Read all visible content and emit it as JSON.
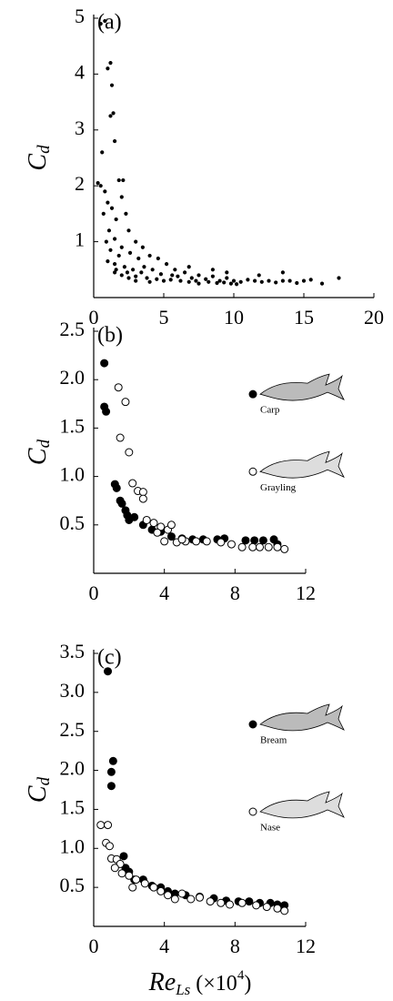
{
  "chart_data": [
    {
      "type": "scatter",
      "annotation": "(a)",
      "y_label": {
        "base": "C",
        "sub": "d"
      },
      "xlim": [
        0,
        20
      ],
      "ylim": [
        0,
        5
      ],
      "xticks": [
        0,
        5,
        10,
        15,
        20
      ],
      "yticks": [
        1,
        2,
        3,
        4,
        5
      ],
      "color": "#000000",
      "marker": "filled",
      "marker_size": 1.6,
      "x": [
        0.5,
        0.8,
        1.2,
        1.0,
        1.3,
        1.4,
        1.2,
        0.6,
        1.5,
        0.3,
        0.5,
        0.8,
        1.0,
        1.8,
        2.1,
        1.3,
        0.7,
        1.6,
        2.0,
        2.3,
        1.1,
        0.9,
        1.5,
        2.5,
        3.0,
        2.0,
        1.2,
        1.8,
        2.6,
        3.2,
        3.5,
        4.0,
        1.0,
        1.5,
        2.2,
        2.8,
        3.4,
        4.2,
        4.8,
        5.2,
        5.6,
        6.0,
        6.5,
        7.0,
        7.5,
        8.0,
        8.5,
        9.0,
        9.5,
        10.0,
        10.5,
        11.0,
        11.5,
        12.0,
        12.5,
        13.0,
        13.5,
        14.0,
        14.5,
        15.0,
        15.5,
        16.3,
        17.5,
        2.0,
        2.5,
        3.0,
        3.8,
        4.5,
        5.0,
        5.5,
        6.2,
        6.8,
        7.3,
        8.2,
        8.8,
        9.3,
        9.8,
        10.2,
        1.6,
        2.4,
        3.6,
        4.6,
        5.8,
        6.8,
        8.5,
        9.5,
        7.5,
        11.8,
        13.5,
        1.5,
        3.0,
        4.0
      ],
      "values": [
        4.9,
        4.95,
        4.2,
        4.1,
        3.8,
        3.3,
        3.25,
        2.6,
        2.8,
        2.05,
        2.0,
        1.9,
        1.7,
        2.1,
        2.1,
        1.6,
        1.5,
        1.4,
        1.8,
        1.5,
        1.2,
        1.0,
        1.05,
        1.2,
        1.0,
        0.9,
        0.85,
        0.75,
        0.8,
        0.7,
        0.9,
        0.75,
        0.65,
        0.6,
        0.55,
        0.5,
        0.45,
        0.5,
        0.42,
        0.6,
        0.4,
        0.38,
        0.45,
        0.35,
        0.4,
        0.33,
        0.38,
        0.3,
        0.35,
        0.3,
        0.28,
        0.32,
        0.3,
        0.28,
        0.3,
        0.27,
        0.3,
        0.3,
        0.26,
        0.3,
        0.32,
        0.25,
        0.35,
        0.4,
        0.35,
        0.38,
        0.35,
        0.33,
        0.3,
        0.32,
        0.3,
        0.28,
        0.3,
        0.28,
        0.26,
        0.27,
        0.25,
        0.24,
        0.5,
        0.45,
        0.55,
        0.7,
        0.5,
        0.55,
        0.5,
        0.45,
        0.25,
        0.4,
        0.45,
        0.45,
        0.3,
        0.28
      ]
    },
    {
      "type": "scatter",
      "annotation": "(b)",
      "y_label": {
        "base": "C",
        "sub": "d"
      },
      "xlim": [
        0,
        12
      ],
      "ylim": [
        0,
        2.5
      ],
      "xticks": [
        0,
        4,
        8,
        12
      ],
      "yticks": [
        0.5,
        {
          "value": 1,
          "label": "1.0"
        },
        1.5,
        {
          "value": 2,
          "label": "2.0"
        },
        2.5
      ],
      "legend": "right",
      "marker_size": 4,
      "series": [
        {
          "name": "Carp",
          "color": "#000000",
          "marker": "filled",
          "x": [
            0.6,
            0.6,
            0.7,
            1.2,
            1.3,
            1.5,
            1.6,
            1.8,
            1.9,
            2.0,
            2.3,
            2.8,
            3.3,
            3.8,
            4.4,
            5.0,
            5.6,
            6.2,
            7.0,
            7.4,
            8.6,
            9.1,
            9.6,
            10.2,
            10.4
          ],
          "values": [
            2.17,
            1.72,
            1.67,
            0.92,
            0.88,
            0.75,
            0.72,
            0.65,
            0.6,
            0.55,
            0.58,
            0.5,
            0.45,
            0.43,
            0.38,
            0.36,
            0.35,
            0.35,
            0.35,
            0.36,
            0.34,
            0.34,
            0.34,
            0.35,
            0.3
          ]
        },
        {
          "name": "Grayling",
          "color": "#000000",
          "marker": "open",
          "x": [
            1.4,
            1.8,
            1.5,
            2.0,
            2.2,
            2.5,
            2.8,
            2.8,
            3.0,
            3.4,
            3.8,
            4.2,
            4.4,
            4.0,
            4.7,
            5.2,
            5.8,
            6.4,
            7.2,
            7.8,
            8.4,
            9.0,
            9.4,
            9.9,
            10.4,
            10.8,
            3.6,
            5.0
          ],
          "values": [
            1.92,
            1.77,
            1.4,
            1.25,
            0.93,
            0.85,
            0.84,
            0.77,
            0.55,
            0.52,
            0.48,
            0.45,
            0.5,
            0.33,
            0.32,
            0.33,
            0.33,
            0.33,
            0.32,
            0.3,
            0.27,
            0.27,
            0.27,
            0.27,
            0.27,
            0.25,
            0.42,
            0.35
          ]
        }
      ]
    },
    {
      "type": "scatter",
      "annotation": "(c)",
      "y_label": {
        "base": "C",
        "sub": "d"
      },
      "x_label": {
        "base": "Re",
        "sub": "Ls",
        "unit": "(×10",
        "exp": "4",
        "close": ")"
      },
      "xlim": [
        0,
        12
      ],
      "ylim": [
        0,
        3.5
      ],
      "xticks": [
        0,
        4,
        8,
        12
      ],
      "yticks": [
        0.5,
        {
          "value": 1,
          "label": "1.0"
        },
        1.5,
        {
          "value": 2,
          "label": "2.0"
        },
        2.5,
        {
          "value": 3,
          "label": "3.0"
        },
        3.5
      ],
      "legend": "right",
      "marker_size": 4,
      "series": [
        {
          "name": "Bream",
          "color": "#000000",
          "marker": "filled",
          "x": [
            0.8,
            1.1,
            1.0,
            1.0,
            1.7,
            1.8,
            2.0,
            2.3,
            2.8,
            3.3,
            3.8,
            4.2,
            4.6,
            5.2,
            6.0,
            6.8,
            7.5,
            8.2,
            8.8,
            9.4,
            10.0,
            10.4,
            10.8
          ],
          "values": [
            3.27,
            2.12,
            1.98,
            1.8,
            0.9,
            0.75,
            0.7,
            0.6,
            0.6,
            0.52,
            0.5,
            0.45,
            0.42,
            0.4,
            0.38,
            0.36,
            0.33,
            0.32,
            0.32,
            0.3,
            0.3,
            0.28,
            0.27
          ]
        },
        {
          "name": "Nase",
          "color": "#000000",
          "marker": "open",
          "x": [
            0.4,
            0.8,
            0.7,
            0.9,
            1.0,
            1.3,
            1.5,
            1.2,
            1.6,
            2.0,
            2.4,
            2.2,
            2.9,
            3.4,
            3.8,
            4.2,
            4.6,
            5.0,
            5.5,
            6.0,
            6.6,
            7.2,
            7.7,
            8.4,
            9.2,
            9.8,
            10.4,
            10.8
          ],
          "values": [
            1.3,
            1.3,
            1.07,
            1.03,
            0.87,
            0.86,
            0.8,
            0.75,
            0.68,
            0.65,
            0.6,
            0.5,
            0.55,
            0.5,
            0.45,
            0.4,
            0.35,
            0.42,
            0.35,
            0.37,
            0.32,
            0.3,
            0.28,
            0.3,
            0.27,
            0.25,
            0.23,
            0.2
          ]
        }
      ]
    }
  ]
}
